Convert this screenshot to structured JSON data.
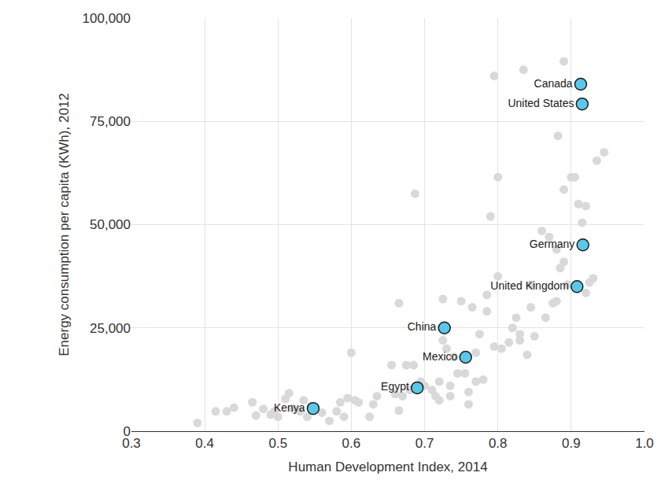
{
  "chart_data": {
    "type": "scatter",
    "x_label": "Human Development Index, 2014",
    "y_label": "Energy consumption per capita (KWh), 2012",
    "xlim": [
      0.3,
      1.0
    ],
    "xticks": [
      0.3,
      0.4,
      0.5,
      0.6,
      0.7,
      0.8,
      0.9,
      {
        "value": 1.0,
        "label": "1.0"
      }
    ],
    "ylim": [
      0,
      100000
    ],
    "yticks": [
      0,
      {
        "value": 25000,
        "label": "25,000"
      },
      {
        "value": 50000,
        "label": "50,000"
      },
      {
        "value": 75000,
        "label": "75,000"
      },
      {
        "value": 100000,
        "label": "100,000"
      }
    ],
    "grid": true,
    "series": [
      {
        "color": "#d9d9d9",
        "marker": "circle",
        "x": [
          0.39,
          0.415,
          0.43,
          0.44,
          0.465,
          0.47,
          0.48,
          0.49,
          0.495,
          0.5,
          0.51,
          0.515,
          0.52,
          0.53,
          0.535,
          0.54,
          0.545,
          0.56,
          0.57,
          0.58,
          0.585,
          0.59,
          0.595,
          0.6,
          0.605,
          0.61,
          0.625,
          0.63,
          0.635,
          0.655,
          0.66,
          0.665,
          0.665,
          0.67,
          0.675,
          0.68,
          0.685,
          0.687,
          0.695,
          0.7,
          0.71,
          0.715,
          0.72,
          0.72,
          0.725,
          0.725,
          0.73,
          0.735,
          0.735,
          0.74,
          0.745,
          0.75,
          0.755,
          0.76,
          0.76,
          0.765,
          0.77,
          0.77,
          0.775,
          0.78,
          0.785,
          0.785,
          0.79,
          0.795,
          0.795,
          0.8,
          0.8,
          0.805,
          0.815,
          0.82,
          0.825,
          0.83,
          0.83,
          0.835,
          0.84,
          0.845,
          0.845,
          0.85,
          0.86,
          0.865,
          0.87,
          0.875,
          0.88,
          0.882,
          0.885,
          0.89,
          0.89,
          0.89,
          0.895,
          0.9,
          0.905,
          0.91,
          0.915,
          0.92,
          0.92,
          0.925,
          0.93,
          0.935,
          0.945,
          0.88
        ],
        "values": [
          2000,
          4800,
          4800,
          5700,
          7000,
          3800,
          5400,
          4000,
          4800,
          3500,
          7800,
          9200,
          5500,
          4800,
          7500,
          3500,
          6000,
          4500,
          2500,
          4800,
          7000,
          3500,
          8000,
          19000,
          7500,
          7000,
          3500,
          6500,
          8500,
          16000,
          9000,
          31000,
          5000,
          8500,
          16000,
          10000,
          16000,
          57500,
          12000,
          11000,
          10000,
          8500,
          12000,
          7500,
          32000,
          22000,
          20000,
          11000,
          8500,
          18000,
          14000,
          31500,
          14000,
          9500,
          6500,
          30000,
          12000,
          19000,
          23500,
          12500,
          33000,
          29000,
          52000,
          86000,
          20500,
          61500,
          37500,
          20000,
          21500,
          25000,
          27500,
          23500,
          22000,
          87500,
          18500,
          35500,
          30000,
          23000,
          48500,
          27500,
          47000,
          31000,
          31500,
          71500,
          39500,
          89500,
          58500,
          41000,
          35500,
          61500,
          61500,
          55000,
          50500,
          33500,
          54500,
          36000,
          37000,
          65500,
          67500,
          44000
        ]
      },
      {
        "color": "#5bc8ea",
        "marker": "circle",
        "labels": [
          "Canada",
          "United States",
          "Germany",
          "United Kingdom",
          "China",
          "Mexico",
          "Egypt",
          "Kenya"
        ],
        "x": [
          0.913,
          0.915,
          0.916,
          0.908,
          0.727,
          0.756,
          0.69,
          0.548
        ],
        "values": [
          84000,
          79200,
          45100,
          35000,
          25000,
          17900,
          10500,
          5500
        ]
      }
    ]
  }
}
